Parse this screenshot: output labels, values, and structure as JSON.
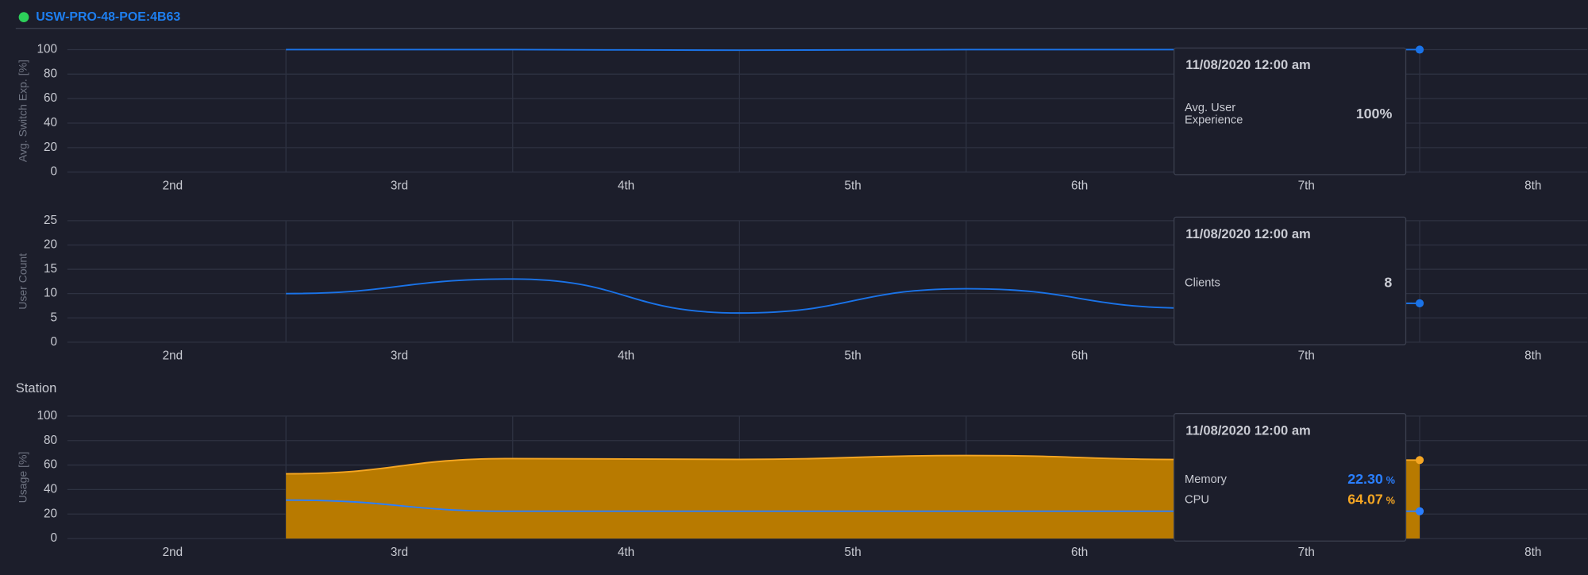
{
  "header": {
    "title": "USW-PRO-48-POE:4B63",
    "section": "Station"
  },
  "chart_data": [
    {
      "type": "line",
      "y_label": "Avg. Switch Exp. [%]",
      "x": [
        3,
        4,
        5,
        6,
        7,
        8
      ],
      "series": [
        {
          "name": "Avg. User Experience",
          "color": "#1a73e8",
          "values": [
            100,
            100,
            99.5,
            100,
            100,
            100
          ]
        }
      ],
      "xlim": [
        2,
        8.74
      ],
      "ylim": [
        0,
        100
      ],
      "yticks": [
        0,
        20,
        40,
        60,
        80,
        100
      ],
      "xticks": [
        {
          "value": 2.5,
          "label": "2nd"
        },
        {
          "value": 3.5,
          "label": "3rd"
        },
        {
          "value": 4.5,
          "label": "4th"
        },
        {
          "value": 5.5,
          "label": "5th"
        },
        {
          "value": 6.5,
          "label": "6th"
        },
        {
          "value": 7.5,
          "label": "7th"
        },
        {
          "value": 8.5,
          "label": "8th"
        }
      ],
      "grid": true,
      "tooltip": {
        "title": "11/08/2020 12:00 am",
        "values": [
          "100%"
        ]
      }
    },
    {
      "type": "line",
      "y_label": "User Count",
      "x": [
        3,
        4,
        5,
        6,
        7,
        8
      ],
      "series": [
        {
          "name": "Clients",
          "color": "#1a73e8",
          "values": [
            10,
            13,
            6,
            11,
            7,
            8
          ]
        }
      ],
      "xlim": [
        2,
        8.74
      ],
      "ylim": [
        0,
        25
      ],
      "yticks": [
        0,
        5,
        10,
        15,
        20,
        25
      ],
      "xticks": [
        {
          "value": 2.5,
          "label": "2nd"
        },
        {
          "value": 3.5,
          "label": "3rd"
        },
        {
          "value": 4.5,
          "label": "4th"
        },
        {
          "value": 5.5,
          "label": "5th"
        },
        {
          "value": 6.5,
          "label": "6th"
        },
        {
          "value": 7.5,
          "label": "7th"
        },
        {
          "value": 8.5,
          "label": "8th"
        }
      ],
      "grid": true,
      "tooltip": {
        "title": "11/08/2020 12:00 am",
        "values": [
          "8"
        ]
      }
    },
    {
      "type": "line",
      "y_label": "Usage [%]",
      "x": [
        3,
        4,
        5,
        6,
        7,
        8
      ],
      "series": [
        {
          "name": "Memory",
          "color": "#2a7fff",
          "values": [
            31.4,
            22.3,
            22.3,
            22.3,
            22.3,
            22.3
          ]
        },
        {
          "name": "CPU",
          "type": "area",
          "color": "#f5a623",
          "fill": "#b87a00",
          "values": [
            52.9,
            65.3,
            64.6,
            67.8,
            64.5,
            64.07
          ]
        }
      ],
      "xlim": [
        2,
        8.74
      ],
      "ylim": [
        0,
        100
      ],
      "yticks": [
        0,
        20,
        40,
        60,
        80,
        100
      ],
      "xticks": [
        {
          "value": 2.5,
          "label": "2nd"
        },
        {
          "value": 3.5,
          "label": "3rd"
        },
        {
          "value": 4.5,
          "label": "4th"
        },
        {
          "value": 5.5,
          "label": "5th"
        },
        {
          "value": 6.5,
          "label": "6th"
        },
        {
          "value": 7.5,
          "label": "7th"
        },
        {
          "value": 8.5,
          "label": "8th"
        }
      ],
      "grid": true,
      "tooltip": {
        "title": "11/08/2020 12:00 am",
        "values": [
          "22.30",
          "64.07"
        ],
        "unit": "%"
      }
    }
  ]
}
